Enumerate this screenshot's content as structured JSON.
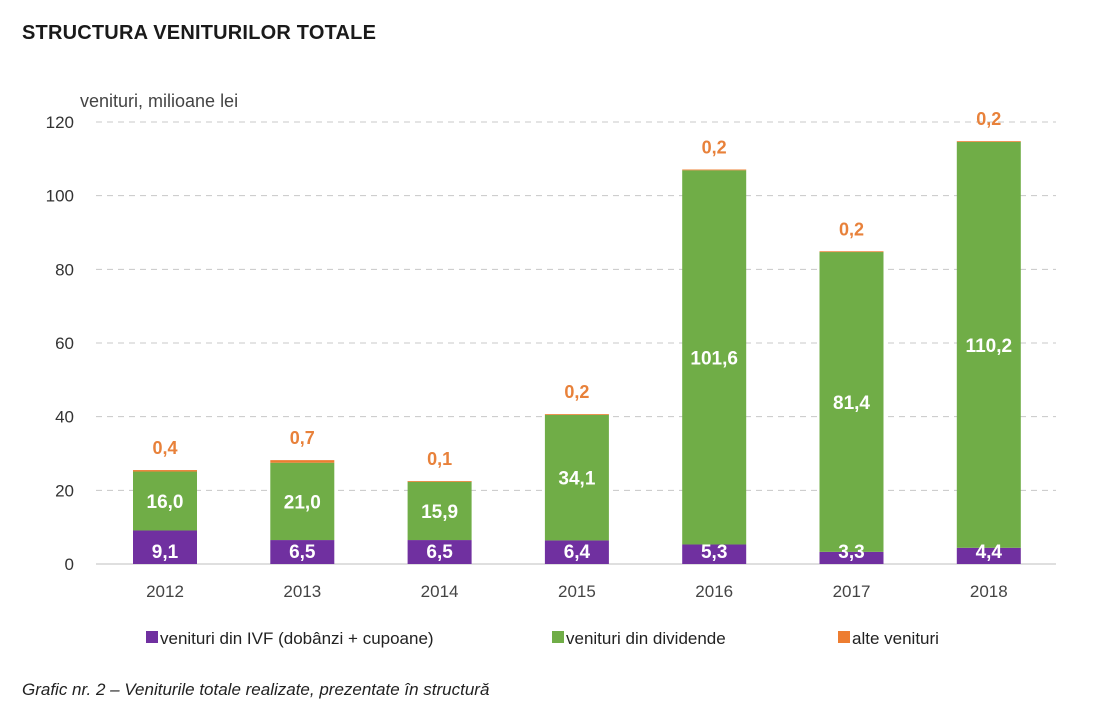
{
  "chart_data": {
    "type": "bar",
    "stacked": true,
    "title": "STRUCTURA VENITURILOR TOTALE",
    "ylabel": "venituri, milioane lei",
    "ylim": [
      0,
      120
    ],
    "yticks": [
      0,
      20,
      40,
      60,
      80,
      100,
      120
    ],
    "grid": true,
    "legend_position": "bottom",
    "categories": [
      "2012",
      "2013",
      "2014",
      "2015",
      "2016",
      "2017",
      "2018"
    ],
    "series": [
      {
        "name": "venituri din IVF (dobânzi + cupoane)",
        "color": "#7030a0",
        "values": [
          9.1,
          6.5,
          6.5,
          6.4,
          5.3,
          3.3,
          4.4
        ],
        "labels": [
          "9,1",
          "6,5",
          "6,5",
          "6,4",
          "5,3",
          "3,3",
          "4,4"
        ]
      },
      {
        "name": "venituri din dividende",
        "color": "#70ad47",
        "values": [
          16.0,
          21.0,
          15.9,
          34.1,
          101.6,
          81.4,
          110.2
        ],
        "labels": [
          "16,0",
          "21,0",
          "15,9",
          "34,1",
          "101,6",
          "81,4",
          "110,2"
        ]
      },
      {
        "name": "alte venituri",
        "color": "#ed7d31",
        "values": [
          0.4,
          0.7,
          0.1,
          0.2,
          0.2,
          0.2,
          0.2
        ],
        "labels": [
          "0,4",
          "0,7",
          "0,1",
          "0,2",
          "0,2",
          "0,2",
          "0,2"
        ]
      }
    ]
  },
  "caption": "Grafic nr. 2 – Veniturile totale realizate, prezentate în structură"
}
